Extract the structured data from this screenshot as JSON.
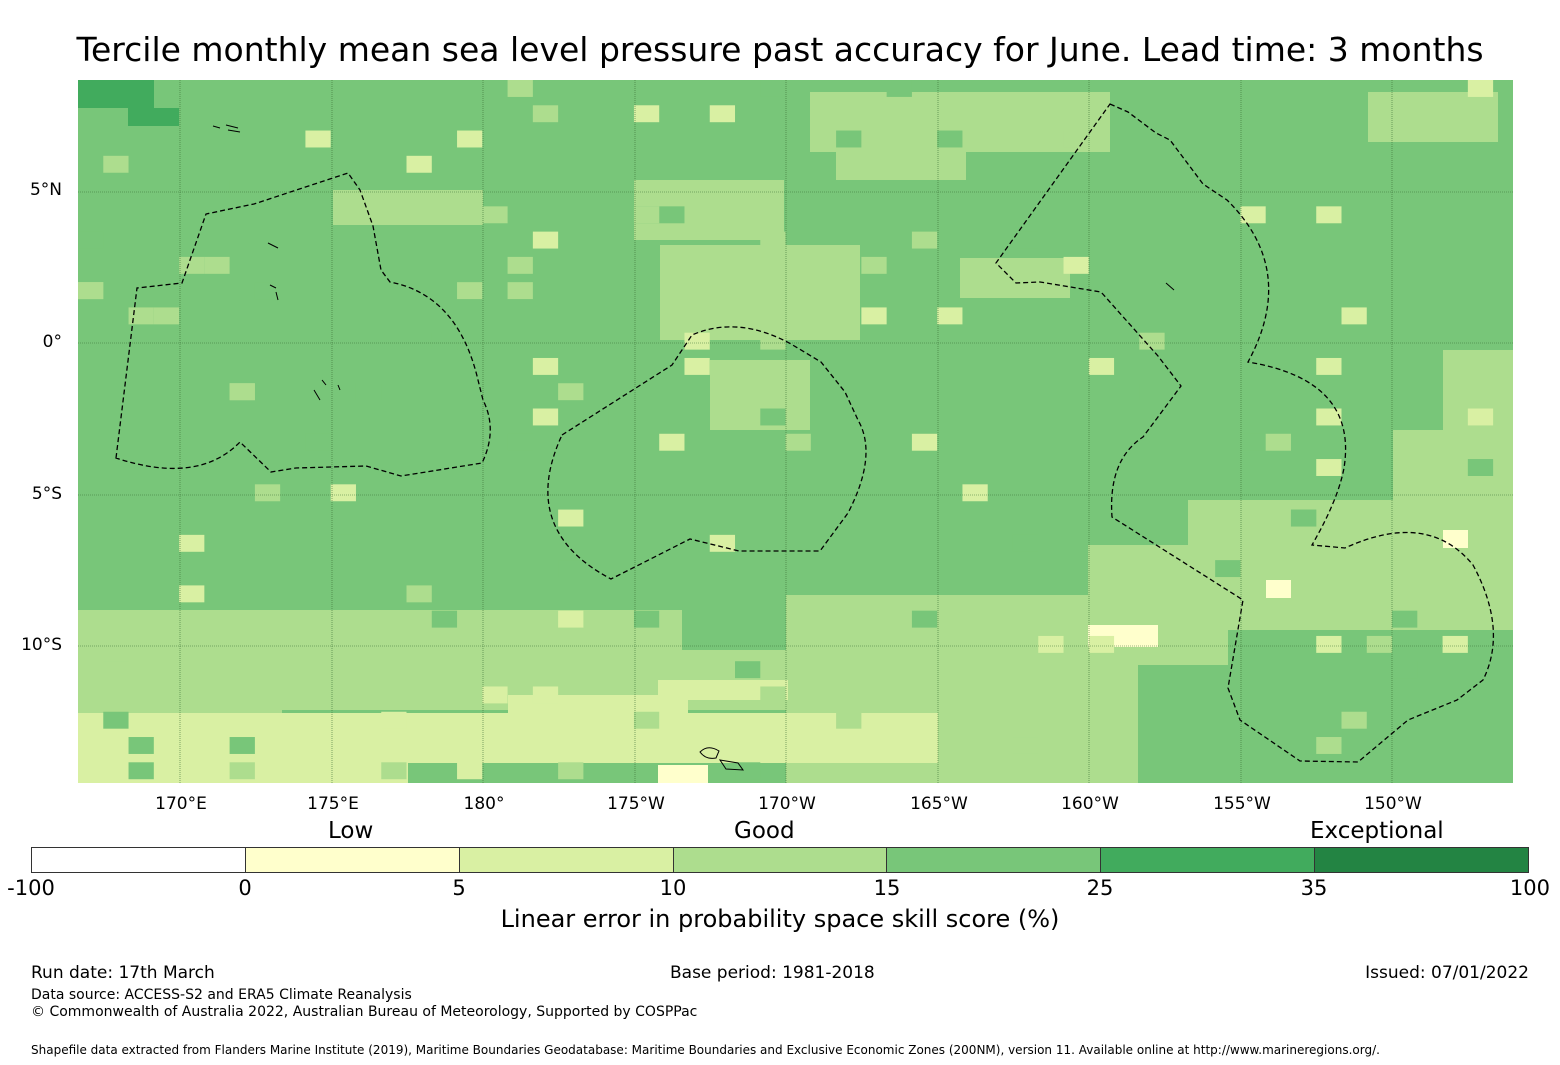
{
  "title": "Tercile monthly mean sea level pressure past accuracy for June. Lead time: 3 months",
  "map": {
    "latitude_labels": [
      "5°N",
      "0°",
      "5°S",
      "10°S"
    ],
    "longitude_labels": [
      "170°E",
      "175°E",
      "180°",
      "175°W",
      "170°W",
      "165°W",
      "160°W",
      "155°W",
      "150°W"
    ],
    "grid_resolution_deg": 0.8333,
    "skill_colors": {
      "0_5": "#ffffcc",
      "5_10": "#d9f0a3",
      "10_15": "#addd8e",
      "15_25": "#78c679",
      "25_35": "#41ab5d",
      "35_100": "#238443",
      "neg": "#ffffff"
    }
  },
  "colorbar": {
    "category_labels": [
      "Low",
      "Good",
      "Exceptional"
    ],
    "ticks": [
      "-100",
      "0",
      "5",
      "10",
      "15",
      "25",
      "35",
      "100"
    ],
    "colors": [
      "#ffffff",
      "#ffffcc",
      "#d9f0a3",
      "#addd8e",
      "#78c679",
      "#41ab5d",
      "#238443"
    ],
    "label": "Linear error in probability space skill score (%)"
  },
  "footer": {
    "run_date": "Run date: 17th March",
    "base_period": "Base period: 1981-2018",
    "issued": "Issued: 07/01/2022",
    "data_source": "Data source: ACCESS-S2 and ERA5 Climate Reanalysis",
    "copyright": "© Commonwealth of Australia 2022, Australian Bureau of Meteorology, Supported by COSPPac",
    "shapefile_note": "Shapefile data extracted from Flanders Marine Institute (2019), Maritime Boundaries Geodatabase: Maritime Boundaries and Exclusive Economic Zones (200NM), version 11. Available online at http://www.marineregions.org/."
  }
}
